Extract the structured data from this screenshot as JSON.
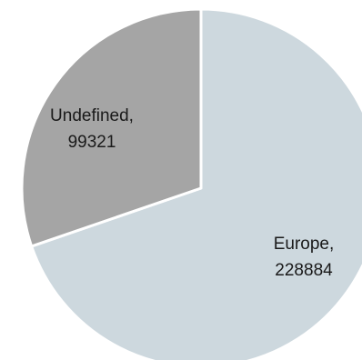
{
  "chart_data": {
    "type": "pie",
    "title": "",
    "start_angle_deg": 0,
    "direction": "clockwise",
    "slices": [
      {
        "label": "Europe",
        "value": 228884,
        "label_text": "Europe,",
        "value_text": "228884",
        "color": "#cdd8de"
      },
      {
        "label": "Undefined",
        "value": 99321,
        "label_text": "Undefined,",
        "value_text": "99321",
        "color": "#a5a5a5"
      }
    ],
    "legend": "none",
    "slice_border_color": "#ffffff"
  }
}
